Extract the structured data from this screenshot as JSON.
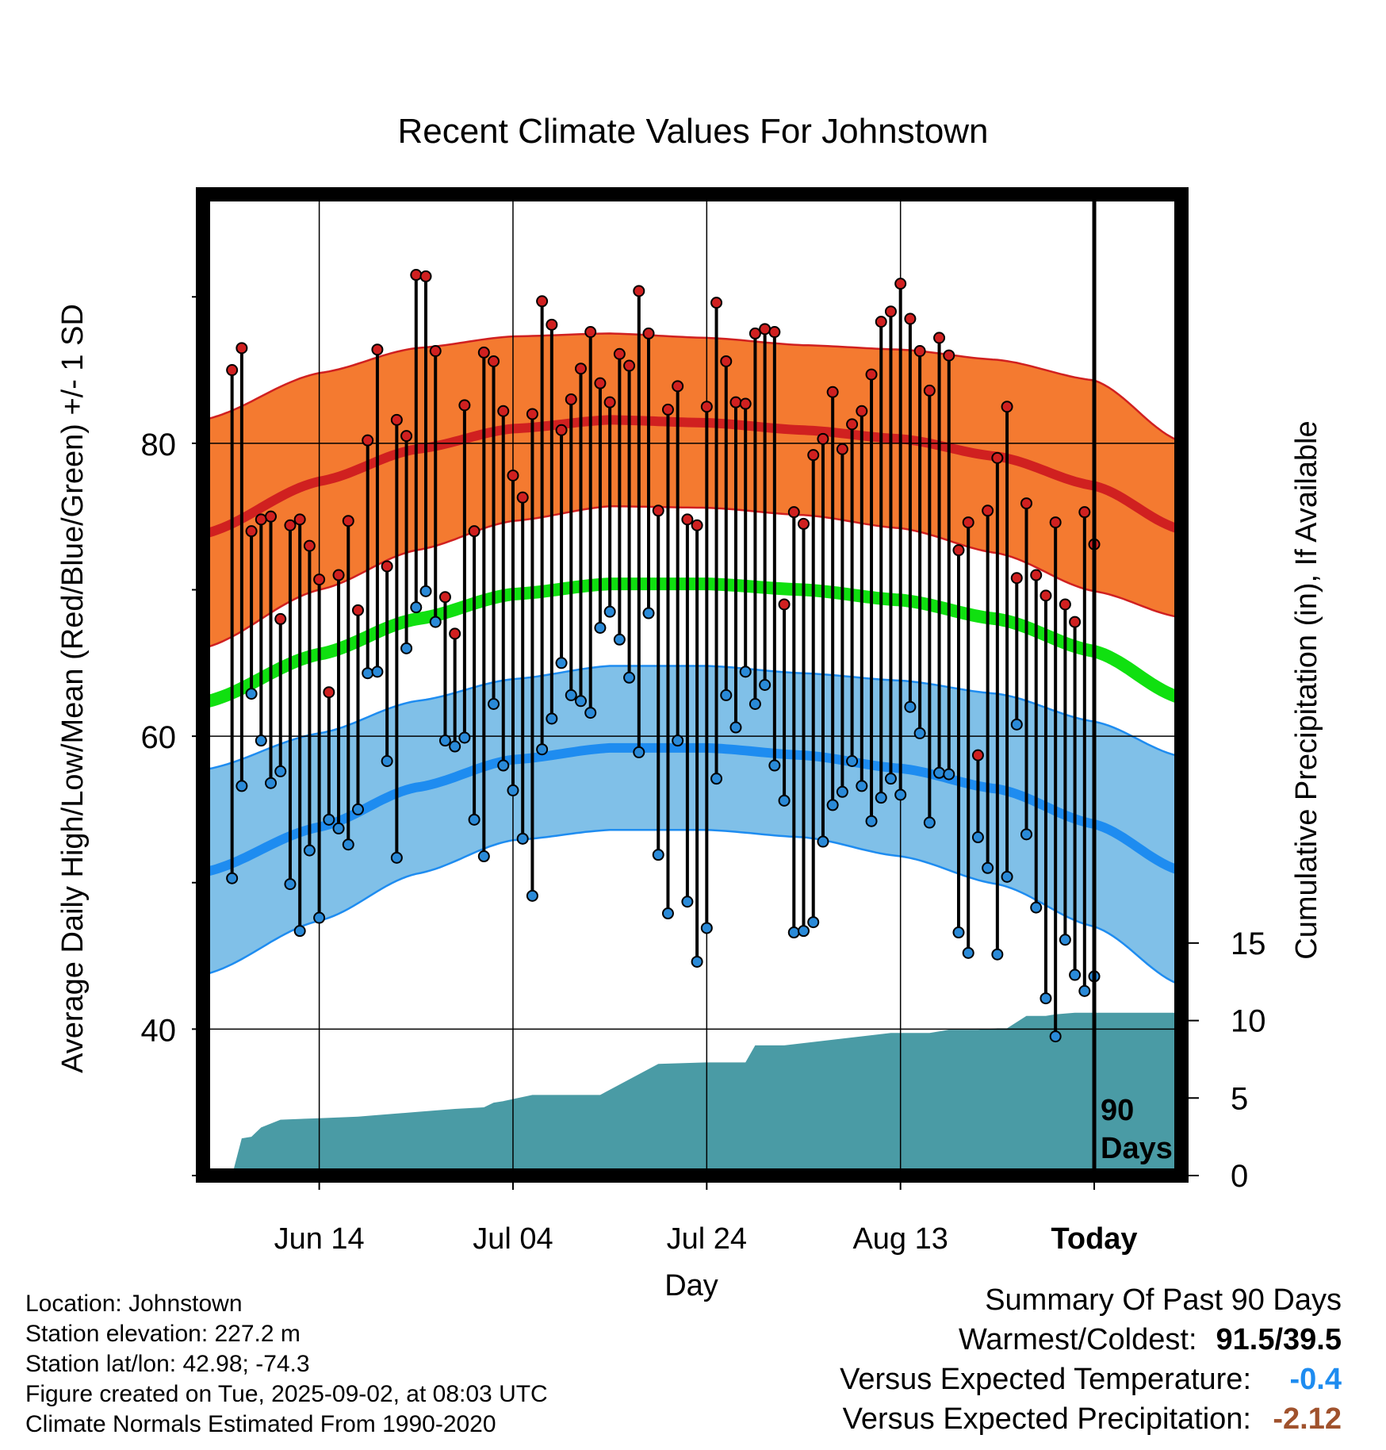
{
  "chart_data": {
    "type": "line",
    "title": "Recent Climate Values For Johnstown",
    "xlabel": "Day",
    "ylabel": "Average Daily High/Low/Mean (Red/Blue/Green) +/- 1 SD",
    "y2label": "Cumulative Precipitation (in), If Available",
    "x_range_days": [
      -92,
      9
    ],
    "ylim": [
      30,
      97
    ],
    "y2lim": [
      0,
      63.3
    ],
    "y_ticks": [
      40,
      60,
      80
    ],
    "y_minor_ticks": [
      30,
      50,
      70,
      90
    ],
    "y2_ticks": [
      0,
      5,
      10,
      15
    ],
    "x_ticks": [
      {
        "day": -80,
        "label": "Jun 14"
      },
      {
        "day": -60,
        "label": "Jul 04"
      },
      {
        "day": -40,
        "label": "Jul 24"
      },
      {
        "day": -20,
        "label": "Aug 13"
      },
      {
        "day": 0,
        "label": "Today"
      }
    ],
    "today_annotation": "90\nDays",
    "normals": {
      "days": [
        -92,
        -80,
        -70,
        -60,
        -50,
        -40,
        -30,
        -20,
        -10,
        0,
        9
      ],
      "high_mean": [
        73.8,
        77.4,
        79.6,
        81.0,
        81.6,
        81.4,
        80.9,
        80.3,
        79.1,
        77.1,
        74.1
      ],
      "high_sd": [
        7.8,
        7.4,
        6.9,
        6.3,
        5.9,
        5.8,
        5.8,
        6.1,
        6.6,
        7.2,
        6.0
      ],
      "mean_mean": [
        62.3,
        65.6,
        68.0,
        69.7,
        70.4,
        70.4,
        70.0,
        69.3,
        68.0,
        65.8,
        62.6
      ],
      "low_mean": [
        50.7,
        53.8,
        56.5,
        58.4,
        59.2,
        59.2,
        58.7,
        57.8,
        56.4,
        54.0,
        50.8
      ],
      "low_sd": [
        7.0,
        6.4,
        5.9,
        5.5,
        5.6,
        5.6,
        5.6,
        6.0,
        6.5,
        7.0,
        7.8
      ]
    },
    "days": [
      -89,
      -88,
      -87,
      -86,
      -85,
      -84,
      -83,
      -82,
      -81,
      -80,
      -79,
      -78,
      -77,
      -76,
      -75,
      -74,
      -73,
      -72,
      -71,
      -70,
      -69,
      -68,
      -67,
      -66,
      -65,
      -64,
      -63,
      -62,
      -61,
      -60,
      -59,
      -58,
      -57,
      -56,
      -55,
      -54,
      -53,
      -52,
      -51,
      -50,
      -49,
      -48,
      -47,
      -46,
      -45,
      -44,
      -43,
      -42,
      -41,
      -40,
      -39,
      -38,
      -37,
      -36,
      -35,
      -34,
      -33,
      -32,
      -31,
      -30,
      -29,
      -28,
      -27,
      -26,
      -25,
      -24,
      -23,
      -22,
      -21,
      -20,
      -19,
      -18,
      -17,
      -16,
      -15,
      -14,
      -13,
      -12,
      -11,
      -10,
      -9,
      -8,
      -7,
      -6,
      -5,
      -4,
      -3,
      -2,
      -1,
      0
    ],
    "highs": [
      85.0,
      86.5,
      74.0,
      74.8,
      75.0,
      68.0,
      74.4,
      74.8,
      73.0,
      70.7,
      63.0,
      71.0,
      74.7,
      68.6,
      80.2,
      86.4,
      71.6,
      81.6,
      80.5,
      91.5,
      91.4,
      86.3,
      69.5,
      67.0,
      82.6,
      74.0,
      86.2,
      85.6,
      82.2,
      77.8,
      76.3,
      82.0,
      89.7,
      88.1,
      80.9,
      83.0,
      85.1,
      87.6,
      84.1,
      82.8,
      86.1,
      85.3,
      90.4,
      87.5,
      75.4,
      82.3,
      83.9,
      74.8,
      74.4,
      82.5,
      89.6,
      85.6,
      82.8,
      82.7,
      87.5,
      87.8,
      87.6,
      69.0,
      75.3,
      74.5,
      79.2,
      80.3,
      83.5,
      79.6,
      81.3,
      82.2,
      84.7,
      88.3,
      89.0,
      90.9,
      88.5,
      86.3,
      83.6,
      87.2,
      86.0,
      72.7,
      74.6,
      58.7,
      75.4,
      79.0,
      82.5,
      70.8,
      75.9,
      71.0,
      69.6,
      74.6,
      69.0,
      67.8,
      75.3,
      73.1
    ],
    "lows": [
      50.3,
      56.6,
      62.9,
      59.7,
      56.8,
      57.6,
      49.9,
      46.7,
      52.2,
      47.6,
      54.3,
      53.7,
      52.6,
      55.0,
      64.3,
      64.4,
      58.3,
      51.7,
      66.0,
      68.8,
      69.9,
      67.8,
      59.7,
      59.3,
      59.9,
      54.3,
      51.8,
      62.2,
      58.0,
      56.3,
      53.0,
      49.1,
      59.1,
      61.2,
      65.0,
      62.8,
      62.4,
      61.6,
      67.4,
      68.5,
      66.6,
      64.0,
      58.9,
      68.4,
      51.9,
      47.9,
      59.7,
      48.7,
      44.6,
      46.9,
      57.1,
      62.8,
      60.6,
      64.4,
      62.2,
      63.5,
      58.0,
      55.6,
      46.6,
      46.7,
      47.3,
      52.8,
      55.3,
      56.2,
      58.3,
      56.6,
      54.2,
      55.8,
      57.1,
      56.0,
      62.0,
      60.2,
      54.1,
      57.5,
      57.4,
      46.6,
      45.2,
      53.1,
      51.0,
      45.1,
      50.4,
      60.8,
      53.3,
      48.3,
      42.1,
      39.5,
      46.1,
      43.7,
      42.6,
      43.6
    ],
    "precip_days": [
      -92,
      -90,
      -89,
      -88,
      -87,
      -86,
      -84,
      -80,
      -76,
      -74,
      -70,
      -66,
      -63,
      -62,
      -61,
      -58,
      -54,
      -52,
      -51,
      -45,
      -40,
      -39,
      -37,
      -36,
      -35,
      -34,
      -32,
      -21,
      -20,
      -18,
      -17,
      -15,
      -14,
      -13,
      -12,
      -10,
      -9,
      -7,
      -5,
      -4,
      -2,
      -1,
      0,
      9
    ],
    "precip_cum": [
      0,
      0,
      0,
      2.4,
      2.5,
      3.1,
      3.6,
      3.7,
      3.8,
      3.9,
      4.1,
      4.3,
      4.4,
      4.7,
      4.8,
      5.2,
      5.2,
      5.2,
      5.2,
      7.2,
      7.3,
      7.3,
      7.3,
      7.3,
      8.4,
      8.4,
      8.4,
      9.2,
      9.2,
      9.2,
      9.2,
      9.4,
      9.4,
      9.4,
      9.4,
      9.5,
      9.5,
      10.3,
      10.3,
      10.4,
      10.5,
      10.5,
      10.5,
      10.5
    ]
  },
  "info": {
    "location": "Location: Johnstown",
    "elevation": "Station elevation: 227.2 m",
    "latlon": "Station lat/lon: 42.98; -74.3",
    "created": "Figure created on Tue, 2025-09-02, at 08:03 UTC",
    "normals": "Climate Normals Estimated From 1990-2020"
  },
  "summary": {
    "heading": "Summary Of Past 90 Days",
    "warm_cold_label": "Warmest/Coldest:",
    "warm_cold_value": "91.5/39.5",
    "temp_label": "Versus Expected Temperature:",
    "temp_value": "-0.4",
    "precip_label": "Versus Expected Precipitation:",
    "precip_value": "-2.12"
  },
  "colors": {
    "high_band": "#f47a30",
    "high_line": "#d02020",
    "mean_line": "#10e010",
    "low_band": "#80c0e8",
    "low_line": "#1e8cf0",
    "precip": "#4a9ba5",
    "high_dot": "#d02020",
    "low_dot": "#2a8ad8",
    "temp_value": "#1e8cf0",
    "precip_value": "#a0522d"
  }
}
